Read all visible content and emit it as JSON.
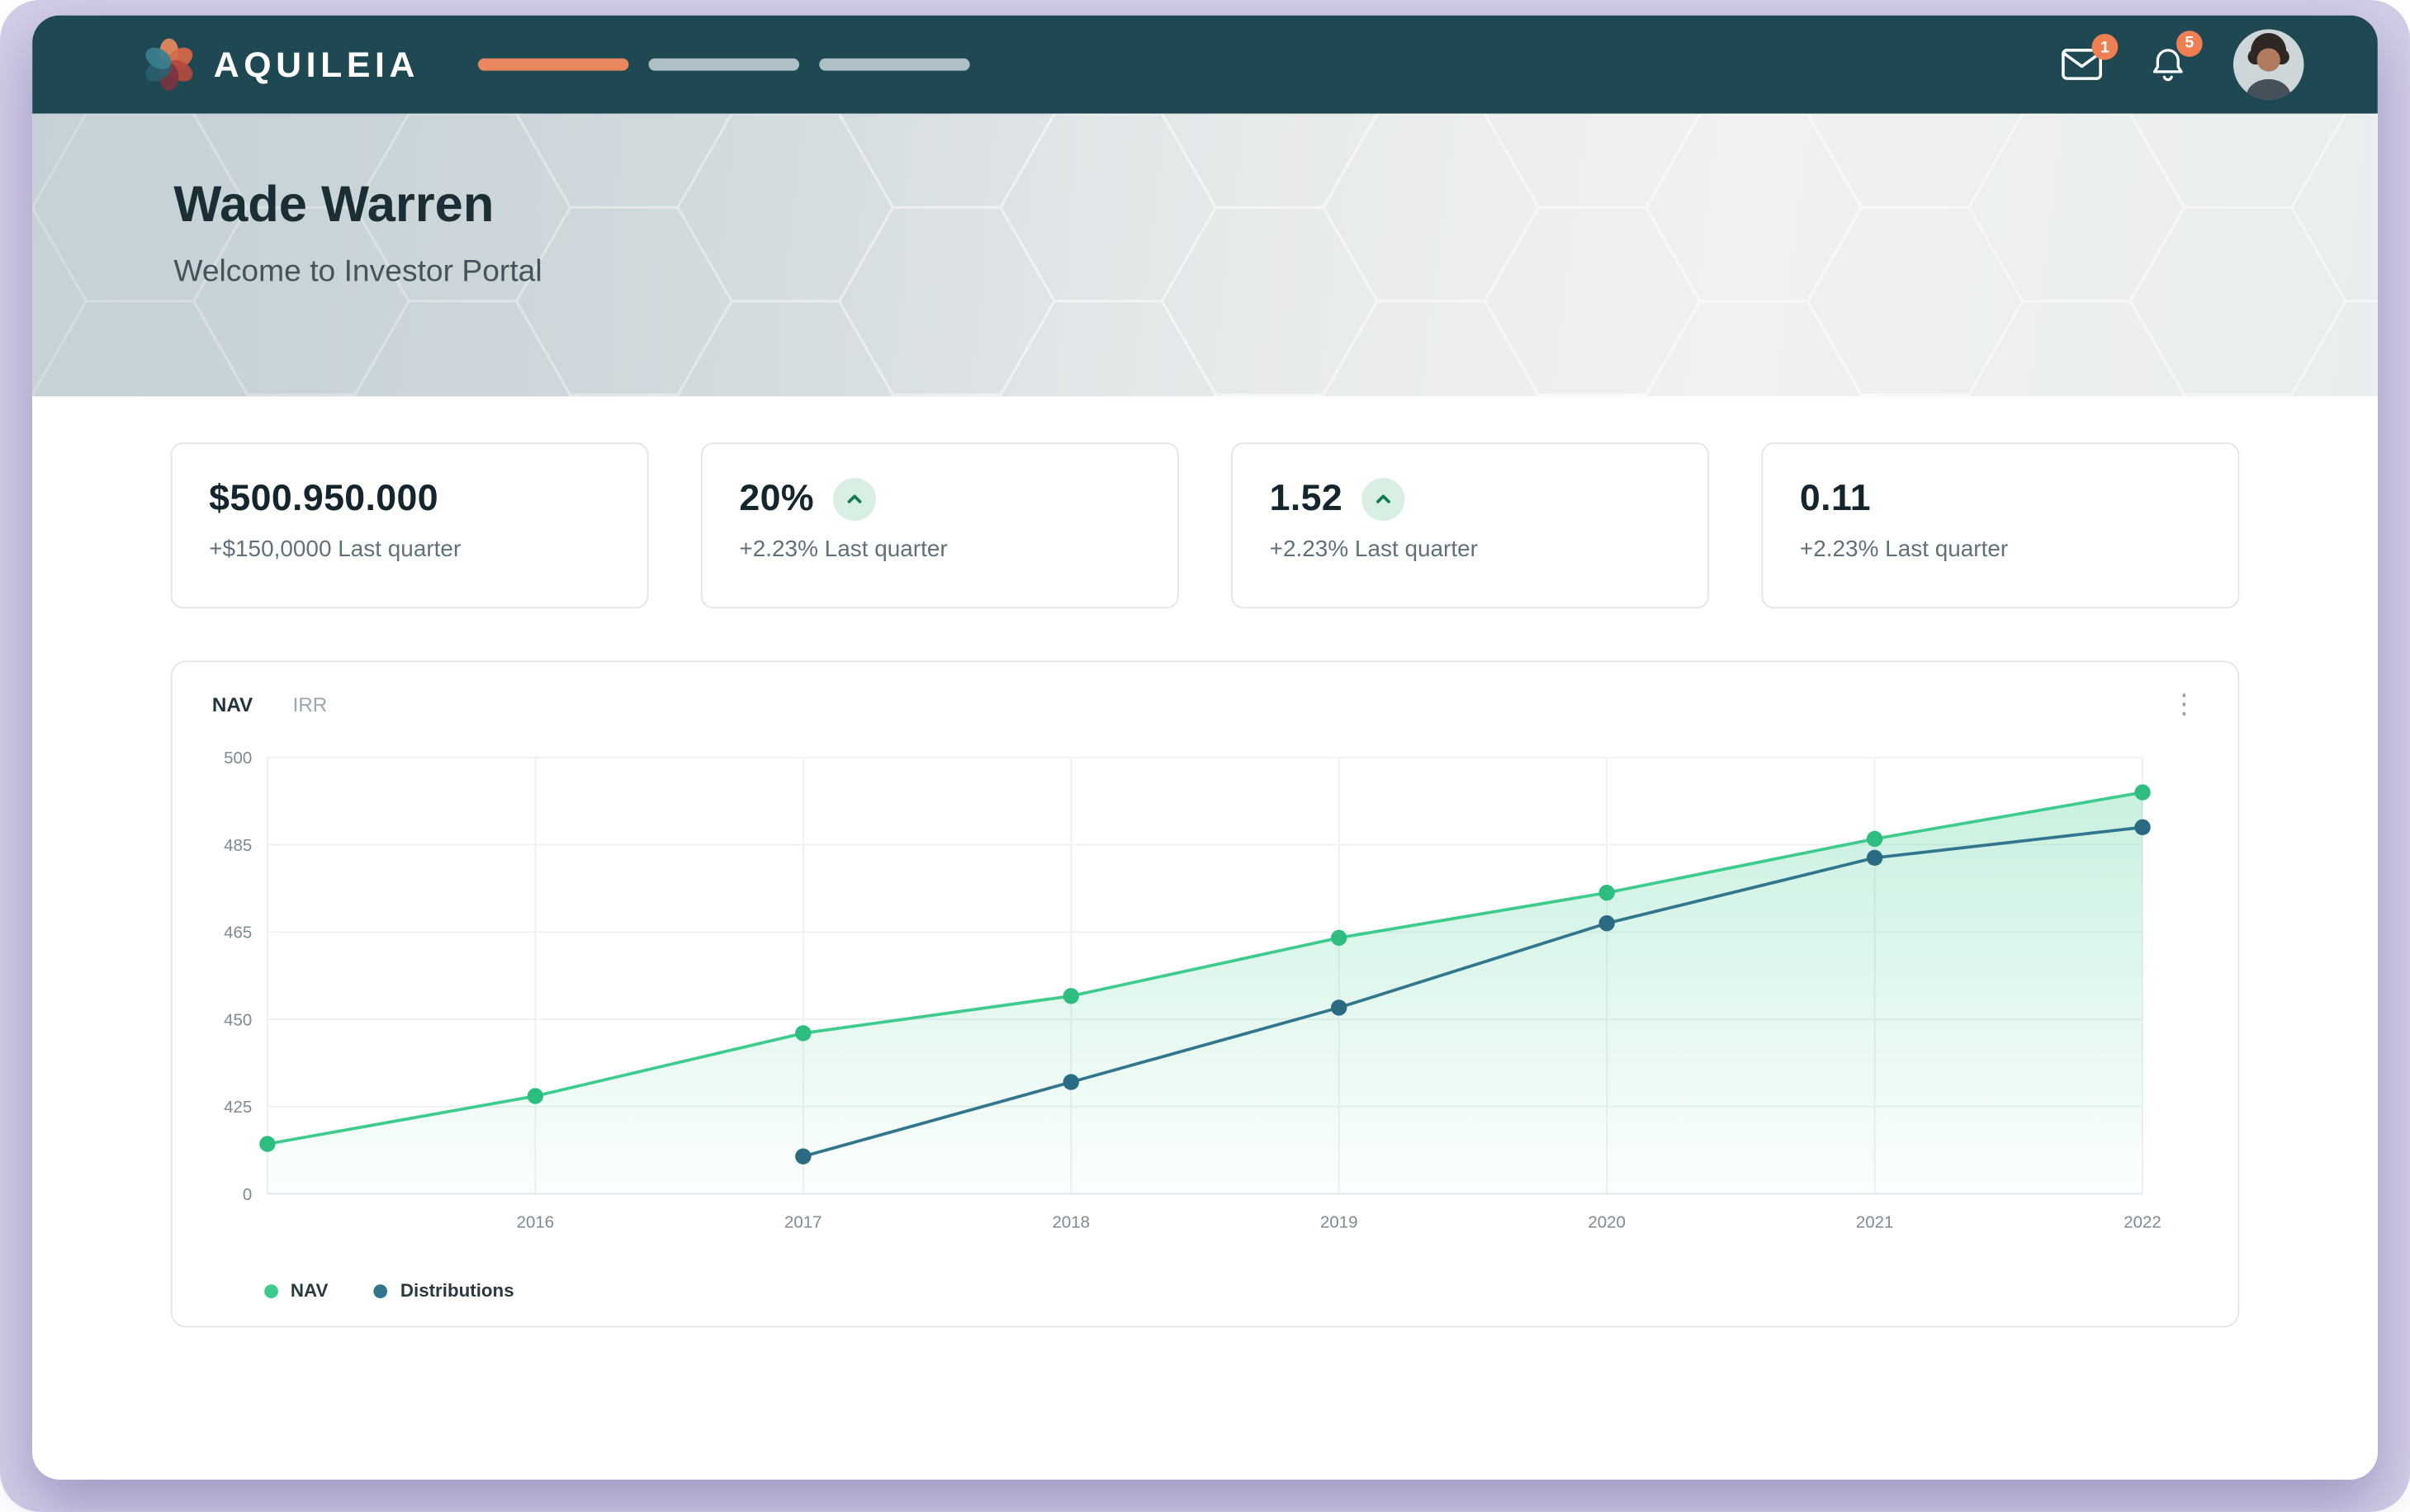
{
  "navbar": {
    "brand": "AQUILEIA",
    "steps": [
      {
        "state": "active"
      },
      {
        "state": "inactive"
      },
      {
        "state": "inactive"
      }
    ],
    "mail": {
      "badge": "1"
    },
    "notifications": {
      "badge": "5"
    }
  },
  "hero": {
    "name": "Wade Warren",
    "subtitle": "Welcome to Investor Portal"
  },
  "stats": [
    {
      "value": "$500.950.000",
      "note": "+$150,0000 Last quarter",
      "trend_up": false
    },
    {
      "value": "20%",
      "note": "+2.23% Last quarter",
      "trend_up": true
    },
    {
      "value": "1.52",
      "note": "+2.23% Last quarter",
      "trend_up": true
    },
    {
      "value": "0.11",
      "note": "+2.23% Last quarter",
      "trend_up": false
    }
  ],
  "chart_card": {
    "tabs": [
      {
        "label": "NAV",
        "active": true
      },
      {
        "label": "IRR",
        "active": false
      }
    ]
  },
  "chart_data": {
    "type": "line",
    "title": "",
    "xlabel": "",
    "ylabel": "",
    "x_years": [
      2015,
      2016,
      2017,
      2018,
      2019,
      2020,
      2021,
      2022
    ],
    "x_tick_labels": [
      "2016",
      "2017",
      "2018",
      "2019",
      "2020",
      "2021",
      "2022"
    ],
    "y_tick_labels": [
      "0",
      "425",
      "450",
      "465",
      "485",
      "500"
    ],
    "y_tick_values": [
      390,
      425,
      450,
      465,
      485,
      500
    ],
    "axis_note": "y axis compressed below 425; baseline labeled 0",
    "grid": true,
    "legend_position": "bottom-left",
    "series": [
      {
        "name": "NAV",
        "color": "#3dcb8e",
        "point_color": "#2dbd80",
        "area": true,
        "points": [
          {
            "x": 2015,
            "y": 410
          },
          {
            "x": 2016,
            "y": 428
          },
          {
            "x": 2017,
            "y": 446
          },
          {
            "x": 2018,
            "y": 454
          },
          {
            "x": 2019,
            "y": 464
          },
          {
            "x": 2020,
            "y": 474
          },
          {
            "x": 2021,
            "y": 486
          },
          {
            "x": 2022,
            "y": 494
          }
        ]
      },
      {
        "name": "Distributions",
        "color": "#31768d",
        "point_color": "#2a6a82",
        "area": false,
        "points": [
          {
            "x": 2017,
            "y": 405
          },
          {
            "x": 2018,
            "y": 432
          },
          {
            "x": 2019,
            "y": 452
          },
          {
            "x": 2020,
            "y": 467
          },
          {
            "x": 2021,
            "y": 482
          },
          {
            "x": 2022,
            "y": 488
          }
        ]
      }
    ],
    "legend": [
      {
        "label": "NAV",
        "color": "#3dcb8e"
      },
      {
        "label": "Distributions",
        "color": "#31768d"
      }
    ]
  },
  "colors": {
    "navbar_bg": "#1e4953",
    "accent_orange": "#ee7f52",
    "nav_green": "#3dcb8e",
    "distributions_teal": "#31768d",
    "trend_icon_green": "#0e7a52",
    "trend_icon_bg": "#d9efe4"
  }
}
